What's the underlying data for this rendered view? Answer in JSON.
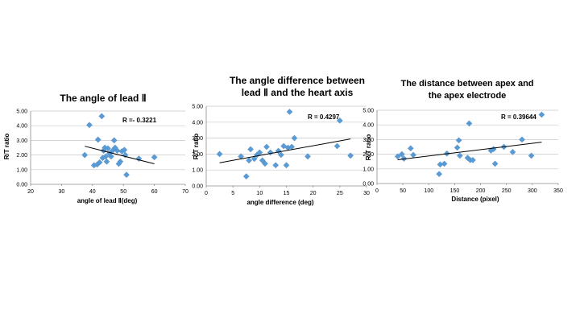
{
  "chart_data": [
    {
      "type": "scatter",
      "title": "The angle of lead Ⅱ",
      "xlabel": "angle of lead Ⅱ(deg)",
      "ylabel": "R/T ratio",
      "xlim": [
        20,
        70
      ],
      "ylim": [
        0,
        5
      ],
      "xticks": [
        "20",
        "30",
        "40",
        "50",
        "60",
        "70"
      ],
      "yticks": [
        "0.00",
        "1.00",
        "2.00",
        "3.00",
        "4.00",
        "5.00"
      ],
      "annotation": "R =- 0.3221",
      "trendline": {
        "x1": 37.5,
        "y1": 2.6,
        "x2": 60,
        "y2": 1.4
      },
      "marker_color": "#5b9bd5",
      "points": [
        [
          37.5,
          2.0
        ],
        [
          39,
          4.05
        ],
        [
          40.5,
          1.3
        ],
        [
          41.5,
          1.35
        ],
        [
          41.8,
          3.05
        ],
        [
          42.3,
          1.5
        ],
        [
          43,
          4.65
        ],
        [
          43.3,
          1.8
        ],
        [
          43.6,
          2.3
        ],
        [
          44,
          2.5
        ],
        [
          44.3,
          1.9
        ],
        [
          44.6,
          1.55
        ],
        [
          45,
          2.45
        ],
        [
          45.5,
          2.1
        ],
        [
          46,
          1.9
        ],
        [
          46.5,
          2.3
        ],
        [
          47,
          3.0
        ],
        [
          47.3,
          2.5
        ],
        [
          48,
          2.3
        ],
        [
          48.5,
          1.4
        ],
        [
          49,
          1.55
        ],
        [
          49.5,
          2.25
        ],
        [
          50.3,
          2.35
        ],
        [
          50.6,
          2.0
        ],
        [
          51,
          0.65
        ],
        [
          55,
          1.75
        ],
        [
          60,
          1.85
        ]
      ]
    },
    {
      "type": "scatter",
      "title": "The angle difference between lead Ⅱ and the heart axis",
      "title_lines": [
        "The angle difference between",
        "lead  Ⅱ  and the heart axis"
      ],
      "xlabel": "angle difference (deg)",
      "ylabel": "R/T ratio",
      "xlim": [
        0,
        30
      ],
      "ylim": [
        0,
        5
      ],
      "xticks": [
        "0",
        "5",
        "10",
        "15",
        "20",
        "25",
        "30"
      ],
      "yticks": [
        "0.00",
        "1.00",
        "2.00",
        "3.00",
        "4.00",
        "5.00"
      ],
      "annotation": "R = 0.4297",
      "trendline": {
        "x1": 2.5,
        "y1": 1.45,
        "x2": 27,
        "y2": 2.95
      },
      "marker_color": "#5b9bd5",
      "points": [
        [
          2.5,
          2.0
        ],
        [
          6.5,
          1.85
        ],
        [
          7.5,
          0.6
        ],
        [
          8,
          1.6
        ],
        [
          8.3,
          2.3
        ],
        [
          9,
          1.7
        ],
        [
          9.5,
          1.95
        ],
        [
          10,
          2.1
        ],
        [
          10.5,
          1.6
        ],
        [
          11,
          1.4
        ],
        [
          11.3,
          2.45
        ],
        [
          12,
          2.1
        ],
        [
          13,
          1.3
        ],
        [
          13.5,
          2.2
        ],
        [
          14,
          1.95
        ],
        [
          14.5,
          2.5
        ],
        [
          15,
          1.3
        ],
        [
          15.3,
          2.4
        ],
        [
          15.6,
          4.65
        ],
        [
          16,
          2.45
        ],
        [
          16.5,
          3.0
        ],
        [
          19,
          1.85
        ],
        [
          24.5,
          2.5
        ],
        [
          25,
          4.1
        ],
        [
          27,
          1.9
        ]
      ]
    },
    {
      "type": "scatter",
      "title": "The distance between apex and the apex electrode",
      "title_lines": [
        "The distance between apex and",
        "the apex electrode"
      ],
      "xlabel": "Distance (pixel)",
      "ylabel": "R/T ratio",
      "xlim": [
        0,
        350
      ],
      "ylim": [
        0,
        5
      ],
      "xticks": [
        "0",
        "50",
        "100",
        "150",
        "200",
        "250",
        "300",
        "350"
      ],
      "yticks": [
        "0.00",
        "1.00",
        "2.00",
        "3.00",
        "4.00",
        "5.00"
      ],
      "annotation": "R = 0.39644",
      "trendline": {
        "x1": 40,
        "y1": 1.62,
        "x2": 318,
        "y2": 2.82
      },
      "marker_color": "#5b9bd5",
      "points": [
        [
          40,
          1.85
        ],
        [
          48,
          2.0
        ],
        [
          52,
          1.7
        ],
        [
          65,
          2.4
        ],
        [
          70,
          1.95
        ],
        [
          120,
          0.65
        ],
        [
          122,
          1.3
        ],
        [
          130,
          1.35
        ],
        [
          135,
          2.05
        ],
        [
          155,
          2.45
        ],
        [
          158,
          2.95
        ],
        [
          160,
          1.9
        ],
        [
          175,
          1.75
        ],
        [
          178,
          4.1
        ],
        [
          180,
          1.6
        ],
        [
          185,
          1.6
        ],
        [
          220,
          2.25
        ],
        [
          225,
          2.35
        ],
        [
          228,
          1.35
        ],
        [
          245,
          2.5
        ],
        [
          262,
          2.15
        ],
        [
          280,
          3.0
        ],
        [
          298,
          1.9
        ],
        [
          318,
          4.7
        ]
      ]
    }
  ]
}
